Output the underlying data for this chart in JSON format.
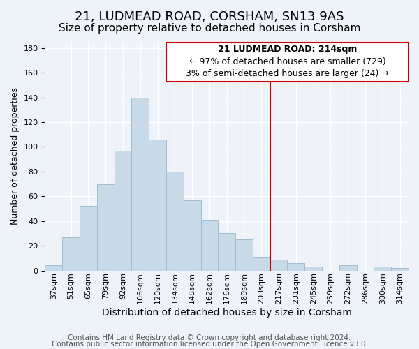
{
  "title": "21, LUDMEAD ROAD, CORSHAM, SN13 9AS",
  "subtitle": "Size of property relative to detached houses in Corsham",
  "xlabel": "Distribution of detached houses by size in Corsham",
  "ylabel": "Number of detached properties",
  "bar_labels": [
    "37sqm",
    "51sqm",
    "65sqm",
    "79sqm",
    "92sqm",
    "106sqm",
    "120sqm",
    "134sqm",
    "148sqm",
    "162sqm",
    "176sqm",
    "189sqm",
    "203sqm",
    "217sqm",
    "231sqm",
    "245sqm",
    "259sqm",
    "272sqm",
    "286sqm",
    "300sqm",
    "314sqm"
  ],
  "bar_values": [
    4,
    27,
    52,
    70,
    97,
    140,
    106,
    80,
    57,
    41,
    30,
    25,
    11,
    9,
    6,
    3,
    0,
    4,
    0,
    3,
    2
  ],
  "bar_color": "#c8d9e8",
  "bar_edge_color": "#a0bcd0",
  "ylim": [
    0,
    185
  ],
  "annotation_title": "21 LUDMEAD ROAD: 214sqm",
  "annotation_line1": "← 97% of detached houses are smaller (729)",
  "annotation_line2": "3% of semi-detached houses are larger (24) →",
  "vline_x": 12.5,
  "vline_color": "#cc0000",
  "annotation_box_color": "#ffffff",
  "annotation_box_edge": "#cc0000",
  "footer_line1": "Contains HM Land Registry data © Crown copyright and database right 2024.",
  "footer_line2": "Contains public sector information licensed under the Open Government Licence v3.0.",
  "background_color": "#eef3f9",
  "grid_color": "#ffffff",
  "title_fontsize": 13,
  "subtitle_fontsize": 11,
  "xlabel_fontsize": 10,
  "ylabel_fontsize": 9,
  "tick_fontsize": 8,
  "footer_fontsize": 7.5,
  "annotation_fontsize": 9,
  "yticks": [
    0,
    20,
    40,
    60,
    80,
    100,
    120,
    140,
    160,
    180
  ]
}
